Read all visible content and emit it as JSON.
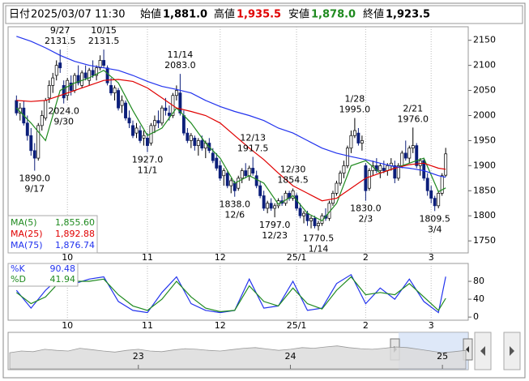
{
  "header": {
    "date_label": "日付",
    "datetime": "2025/03/07 11:30",
    "open_label": "始値",
    "open": "1,881.0",
    "high_label": "高値",
    "high": "1,935.5",
    "low_label": "安値",
    "low": "1,878.0",
    "close_label": "終値",
    "close": "1,923.5"
  },
  "chart_data": {
    "type": "candlestick",
    "up_color": "#ffffff",
    "down_color": "#0c1f7a",
    "xlim": [
      -2.3,
      124.2
    ],
    "ylim": [
      1726,
      2177
    ],
    "yticks": [
      1750,
      1800,
      1850,
      1900,
      1950,
      2000,
      2050,
      2100,
      2150
    ],
    "xticks": [
      {
        "value": 14,
        "label": "10"
      },
      {
        "value": 36,
        "label": "11"
      },
      {
        "value": 56,
        "label": "12"
      },
      {
        "value": 77,
        "label": "25/1"
      },
      {
        "value": 96,
        "label": "2"
      },
      {
        "value": 114,
        "label": "3"
      }
    ],
    "ohlc": [
      [
        2030,
        2040,
        2000,
        2005
      ],
      [
        2005,
        2025,
        1990,
        2015
      ],
      [
        2015,
        2030,
        1980,
        1985
      ],
      [
        1985,
        2000,
        1950,
        1960
      ],
      [
        1960,
        1975,
        1920,
        1930
      ],
      [
        1930,
        1945,
        1890,
        1915
      ],
      [
        1915,
        1985,
        1910,
        1980
      ],
      [
        1980,
        2010,
        1970,
        2000
      ],
      [
        1995,
        2035,
        1990,
        2030
      ],
      [
        2035,
        2070,
        2025,
        2060
      ],
      [
        2060,
        2085,
        2045,
        2075
      ],
      [
        2080,
        2110,
        2070,
        2100
      ],
      [
        2105,
        2131.5,
        2085,
        2095
      ],
      [
        2060,
        2070,
        2024,
        2035
      ],
      [
        2040,
        2075,
        2030,
        2070
      ],
      [
        2065,
        2080,
        2040,
        2050
      ],
      [
        2050,
        2085,
        2045,
        2080
      ],
      [
        2080,
        2100,
        2060,
        2065
      ],
      [
        2060,
        2090,
        2055,
        2085
      ],
      [
        2085,
        2100,
        2070,
        2075
      ],
      [
        2070,
        2095,
        2060,
        2090
      ],
      [
        2090,
        2110,
        2075,
        2080
      ],
      [
        2080,
        2100,
        2070,
        2095
      ],
      [
        2095,
        2120,
        2090,
        2110
      ],
      [
        2110,
        2131.5,
        2095,
        2100
      ],
      [
        2095,
        2100,
        2060,
        2065
      ],
      [
        2060,
        2075,
        2040,
        2045
      ],
      [
        2045,
        2060,
        2030,
        2055
      ],
      [
        2050,
        2055,
        2010,
        2015
      ],
      [
        2020,
        2040,
        2005,
        2030
      ],
      [
        2025,
        2030,
        1990,
        1995
      ],
      [
        1995,
        2010,
        1975,
        1985
      ],
      [
        1980,
        1990,
        1955,
        1960
      ],
      [
        1965,
        1985,
        1955,
        1975
      ],
      [
        1970,
        1980,
        1945,
        1950
      ],
      [
        1955,
        1970,
        1940,
        1960
      ],
      [
        1955,
        1965,
        1927,
        1940
      ],
      [
        1945,
        1985,
        1940,
        1980
      ],
      [
        1980,
        2000,
        1965,
        1990
      ],
      [
        1990,
        2010,
        1975,
        1985
      ],
      [
        1985,
        2020,
        1980,
        2015
      ],
      [
        2015,
        2035,
        2000,
        2010
      ],
      [
        2005,
        2020,
        1990,
        2000
      ],
      [
        2000,
        2045,
        1995,
        2040
      ],
      [
        2040,
        2060,
        2030,
        2050
      ],
      [
        2045,
        2083,
        2000,
        2005
      ],
      [
        2000,
        2010,
        1960,
        1965
      ],
      [
        1965,
        1975,
        1945,
        1950
      ],
      [
        1950,
        1965,
        1935,
        1960
      ],
      [
        1955,
        1960,
        1930,
        1940
      ],
      [
        1940,
        1955,
        1920,
        1950
      ],
      [
        1950,
        1960,
        1930,
        1935
      ],
      [
        1935,
        1950,
        1915,
        1945
      ],
      [
        1945,
        1955,
        1925,
        1930
      ],
      [
        1925,
        1935,
        1905,
        1910
      ],
      [
        1915,
        1925,
        1890,
        1895
      ],
      [
        1900,
        1910,
        1870,
        1875
      ],
      [
        1880,
        1895,
        1860,
        1890
      ],
      [
        1885,
        1890,
        1855,
        1860
      ],
      [
        1860,
        1875,
        1845,
        1870
      ],
      [
        1865,
        1870,
        1838,
        1850
      ],
      [
        1855,
        1880,
        1850,
        1875
      ],
      [
        1875,
        1895,
        1865,
        1890
      ],
      [
        1890,
        1905,
        1875,
        1880
      ],
      [
        1880,
        1900,
        1870,
        1895
      ],
      [
        1895,
        1917.5,
        1880,
        1885
      ],
      [
        1880,
        1890,
        1855,
        1860
      ],
      [
        1860,
        1870,
        1835,
        1840
      ],
      [
        1840,
        1850,
        1810,
        1815
      ],
      [
        1815,
        1830,
        1805,
        1825
      ],
      [
        1825,
        1835,
        1810,
        1815
      ],
      [
        1815,
        1825,
        1797,
        1820
      ],
      [
        1820,
        1835,
        1815,
        1830
      ],
      [
        1830,
        1840,
        1820,
        1825
      ],
      [
        1825,
        1850,
        1820,
        1845
      ],
      [
        1845,
        1850,
        1830,
        1835
      ],
      [
        1835,
        1854.5,
        1830,
        1850
      ],
      [
        1840,
        1845,
        1810,
        1815
      ],
      [
        1815,
        1825,
        1795,
        1800
      ],
      [
        1800,
        1810,
        1785,
        1805
      ],
      [
        1805,
        1810,
        1780,
        1790
      ],
      [
        1790,
        1800,
        1775,
        1795
      ],
      [
        1795,
        1800,
        1775,
        1780
      ],
      [
        1780,
        1790,
        1770.5,
        1785
      ],
      [
        1785,
        1805,
        1780,
        1800
      ],
      [
        1800,
        1815,
        1790,
        1795
      ],
      [
        1795,
        1830,
        1790,
        1825
      ],
      [
        1825,
        1850,
        1820,
        1845
      ],
      [
        1845,
        1870,
        1840,
        1865
      ],
      [
        1865,
        1890,
        1860,
        1885
      ],
      [
        1885,
        1910,
        1875,
        1900
      ],
      [
        1900,
        1940,
        1895,
        1935
      ],
      [
        1935,
        1970,
        1925,
        1960
      ],
      [
        1960,
        1995,
        1955,
        1970
      ],
      [
        1965,
        1975,
        1940,
        1945
      ],
      [
        1945,
        1960,
        1930,
        1950
      ],
      [
        1900,
        1905,
        1830,
        1850
      ],
      [
        1855,
        1895,
        1850,
        1890
      ],
      [
        1890,
        1910,
        1880,
        1900
      ],
      [
        1900,
        1915,
        1885,
        1890
      ],
      [
        1890,
        1905,
        1875,
        1900
      ],
      [
        1895,
        1910,
        1885,
        1890
      ],
      [
        1890,
        1905,
        1880,
        1900
      ],
      [
        1900,
        1915,
        1890,
        1905
      ],
      [
        1900,
        1910,
        1865,
        1875
      ],
      [
        1875,
        1905,
        1870,
        1900
      ],
      [
        1900,
        1930,
        1895,
        1925
      ],
      [
        1925,
        1950,
        1910,
        1915
      ],
      [
        1915,
        1940,
        1905,
        1935
      ],
      [
        1935,
        1976,
        1925,
        1940
      ],
      [
        1940,
        1945,
        1895,
        1900
      ],
      [
        1900,
        1915,
        1880,
        1910
      ],
      [
        1910,
        1915,
        1870,
        1875
      ],
      [
        1875,
        1885,
        1840,
        1850
      ],
      [
        1850,
        1860,
        1825,
        1835
      ],
      [
        1835,
        1840,
        1809.5,
        1820
      ],
      [
        1820,
        1850,
        1815,
        1845
      ],
      [
        1845,
        1885,
        1840,
        1880
      ],
      [
        1881,
        1935.5,
        1878,
        1923.5
      ]
    ],
    "ma": [
      {
        "name": "MA(5)",
        "label": "1,855.60",
        "color": "#1f8a1f",
        "x": [
          0,
          4,
          8,
          12,
          16,
          20,
          24,
          28,
          32,
          36,
          40,
          44,
          48,
          52,
          56,
          60,
          64,
          68,
          72,
          76,
          80,
          84,
          88,
          92,
          96,
          100,
          104,
          108,
          112,
          116,
          118
        ],
        "values": [
          2015,
          1985,
          1950,
          2050,
          2065,
          2075,
          2090,
          2065,
          2010,
          1960,
          1975,
          2015,
          1985,
          1945,
          1915,
          1865,
          1880,
          1865,
          1823,
          1840,
          1805,
          1790,
          1825,
          1900,
          1910,
          1885,
          1895,
          1905,
          1915,
          1848,
          1855.6
        ]
      },
      {
        "name": "MA(25)",
        "label": "1,892.88",
        "color": "#e00000",
        "x": [
          0,
          4,
          8,
          12,
          16,
          20,
          24,
          28,
          32,
          36,
          40,
          44,
          48,
          52,
          56,
          60,
          64,
          68,
          72,
          76,
          80,
          84,
          88,
          92,
          96,
          100,
          104,
          108,
          112,
          116,
          118
        ],
        "values": [
          2030,
          2028,
          2030,
          2040,
          2050,
          2060,
          2070,
          2072,
          2068,
          2055,
          2035,
          2015,
          2008,
          2000,
          1985,
          1960,
          1935,
          1912,
          1885,
          1860,
          1845,
          1830,
          1835,
          1855,
          1875,
          1885,
          1895,
          1902,
          1905,
          1895,
          1892.88
        ]
      },
      {
        "name": "MA(75)",
        "label": "1,876.74",
        "color": "#2233ee",
        "x": [
          0,
          4,
          8,
          12,
          16,
          20,
          24,
          28,
          32,
          36,
          40,
          44,
          48,
          52,
          56,
          60,
          64,
          68,
          72,
          76,
          80,
          84,
          88,
          92,
          96,
          100,
          104,
          108,
          112,
          116,
          118
        ],
        "values": [
          2158,
          2148,
          2135,
          2120,
          2108,
          2100,
          2095,
          2090,
          2080,
          2068,
          2058,
          2052,
          2045,
          2030,
          2018,
          2008,
          2000,
          1990,
          1975,
          1965,
          1950,
          1935,
          1925,
          1918,
          1912,
          1905,
          1898,
          1895,
          1890,
          1880,
          1876.74
        ]
      }
    ],
    "annotations": [
      {
        "candle": 12,
        "kind": "high",
        "date": "9/27",
        "label": "2131.5"
      },
      {
        "candle": 24,
        "kind": "high",
        "date": "10/15",
        "label": "2131.5"
      },
      {
        "candle": 45,
        "kind": "high",
        "date": "11/14",
        "label": "2083.0"
      },
      {
        "candle": 65,
        "kind": "high",
        "date": "12/13",
        "label": "1917.5"
      },
      {
        "candle": 76,
        "kind": "high",
        "date": "12/30",
        "label": "1854.5"
      },
      {
        "candle": 93,
        "kind": "high",
        "date": "1/28",
        "label": "1995.0"
      },
      {
        "candle": 109,
        "kind": "high",
        "date": "2/21",
        "label": "1976.0"
      },
      {
        "candle": 5,
        "kind": "low",
        "date": "9/17",
        "label": "1890.0"
      },
      {
        "candle": 13,
        "kind": "low",
        "date": "9/30",
        "label": "2024.0"
      },
      {
        "candle": 36,
        "kind": "low",
        "date": "11/1",
        "label": "1927.0"
      },
      {
        "candle": 60,
        "kind": "low",
        "date": "12/6",
        "label": "1838.0"
      },
      {
        "candle": 71,
        "kind": "low",
        "date": "12/23",
        "label": "1797.0"
      },
      {
        "candle": 83,
        "kind": "low",
        "date": "1/14",
        "label": "1770.5"
      },
      {
        "candle": 96,
        "kind": "low",
        "date": "2/3",
        "label": "1830.0"
      },
      {
        "candle": 115,
        "kind": "low",
        "date": "3/4",
        "label": "1809.5"
      }
    ],
    "stochastics": {
      "ylim": [
        -7,
        120
      ],
      "yticks": [
        0,
        40,
        80
      ],
      "series": [
        {
          "name": "%K",
          "label": "90.48",
          "color": "#2233ee",
          "x": [
            0,
            4,
            8,
            12,
            16,
            20,
            24,
            28,
            32,
            36,
            40,
            44,
            48,
            52,
            56,
            60,
            64,
            68,
            72,
            76,
            80,
            84,
            88,
            92,
            96,
            100,
            104,
            108,
            112,
            116,
            118
          ],
          "values": [
            60,
            20,
            60,
            90,
            75,
            85,
            90,
            35,
            15,
            10,
            55,
            90,
            30,
            15,
            10,
            15,
            85,
            20,
            25,
            80,
            15,
            20,
            75,
            95,
            30,
            65,
            40,
            85,
            35,
            10,
            90.48
          ]
        },
        {
          "name": "%D",
          "label": "41.94",
          "color": "#1f8a1f",
          "x": [
            0,
            4,
            8,
            12,
            16,
            20,
            24,
            28,
            32,
            36,
            40,
            44,
            48,
            52,
            56,
            60,
            64,
            68,
            72,
            76,
            80,
            84,
            88,
            92,
            96,
            100,
            104,
            108,
            112,
            116,
            118
          ],
          "values": [
            55,
            30,
            45,
            80,
            80,
            80,
            85,
            50,
            25,
            15,
            40,
            80,
            45,
            20,
            12,
            15,
            70,
            35,
            25,
            65,
            30,
            18,
            60,
            90,
            50,
            55,
            50,
            75,
            45,
            15,
            41.94
          ]
        }
      ]
    },
    "navigator": {
      "ylim": [
        0,
        100
      ],
      "xticks": [
        {
          "value": 11,
          "label": "23"
        },
        {
          "value": 24,
          "label": "24"
        },
        {
          "value": 37,
          "label": "25"
        }
      ],
      "values": [
        45,
        50,
        48,
        55,
        52,
        50,
        58,
        54,
        50,
        47,
        52,
        55,
        50,
        48,
        53,
        57,
        55,
        52,
        50,
        54,
        58,
        60,
        56,
        52,
        55,
        60,
        58,
        62,
        65,
        60,
        57,
        55,
        58,
        62,
        60,
        55,
        50,
        45,
        48,
        52
      ]
    }
  }
}
